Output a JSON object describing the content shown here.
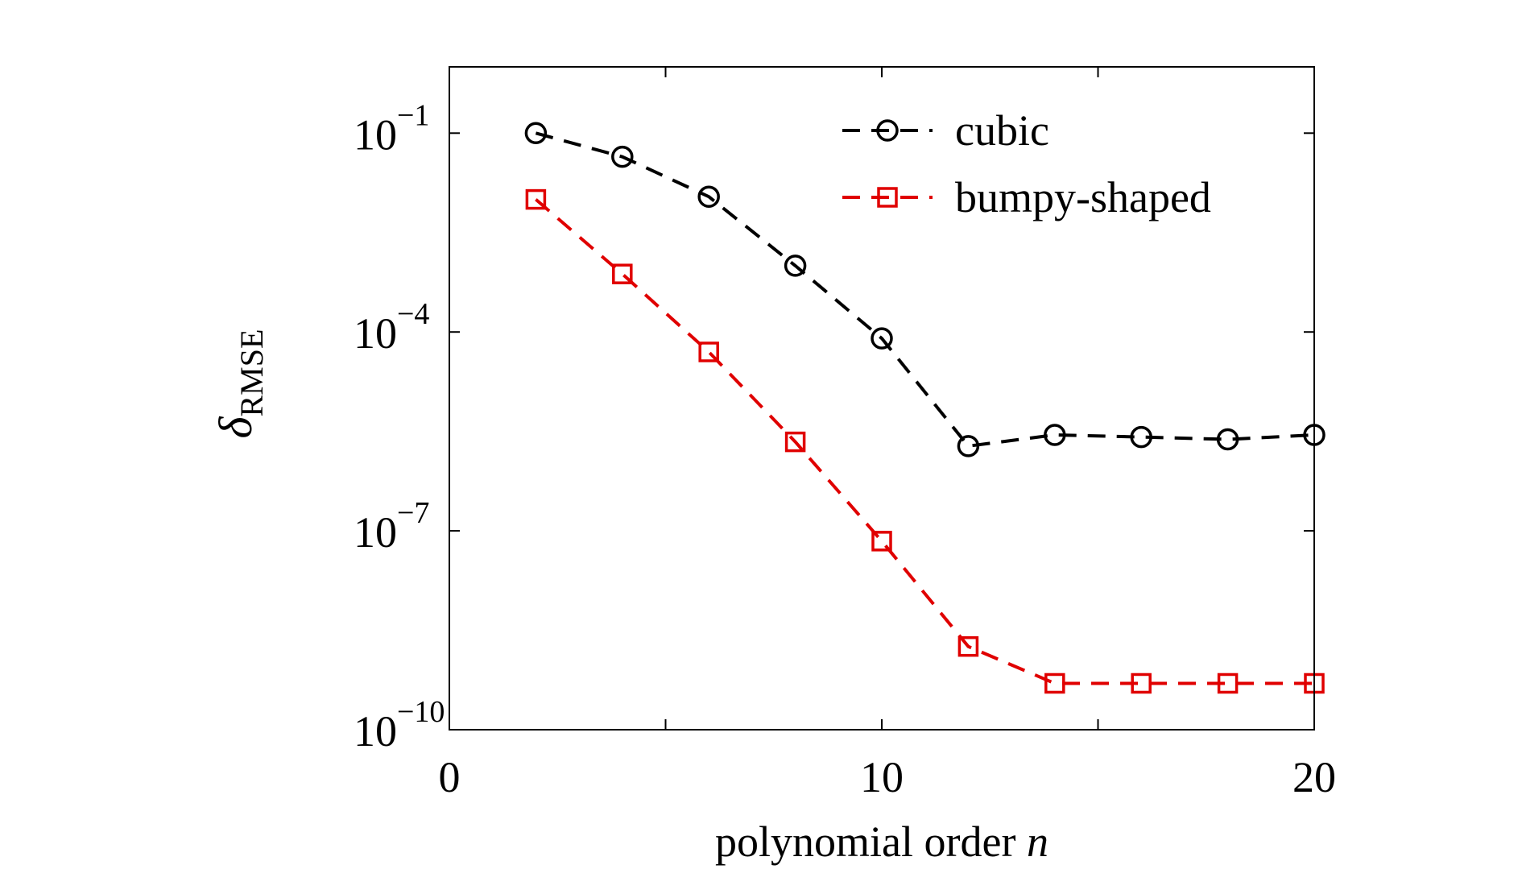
{
  "chart_data": {
    "type": "line",
    "xlabel": "polynomial order",
    "xlabel_var": "n",
    "ylabel_symbol": "δ",
    "ylabel_subscript": "RMSE",
    "xlim": [
      0,
      20
    ],
    "ylim": [
      1e-10,
      1
    ],
    "yscale": "log",
    "grid": false,
    "legend_position": "top-right",
    "x_ticks": [
      {
        "value": 0,
        "label": "0"
      },
      {
        "value": 5,
        "label": ""
      },
      {
        "value": 10,
        "label": "10"
      },
      {
        "value": 15,
        "label": ""
      },
      {
        "value": 20,
        "label": "20"
      }
    ],
    "y_ticks": [
      {
        "value": 1e-10,
        "base": "10",
        "exp": "−10"
      },
      {
        "value": 1e-07,
        "base": "10",
        "exp": "−7"
      },
      {
        "value": 0.0001,
        "base": "10",
        "exp": "−4"
      },
      {
        "value": 0.1,
        "base": "10",
        "exp": "−1"
      }
    ],
    "series": [
      {
        "name": "cubic",
        "color": "#000000",
        "marker": "circle",
        "x": [
          2,
          4,
          6,
          8,
          10,
          12,
          14,
          16,
          18,
          20
        ],
        "y": [
          0.1,
          0.044,
          0.011,
          0.001,
          8e-05,
          1.9e-06,
          2.8e-06,
          2.6e-06,
          2.4e-06,
          2.8e-06
        ]
      },
      {
        "name": "bumpy-shaped",
        "color": "#e00000",
        "marker": "square",
        "x": [
          2,
          4,
          6,
          8,
          10,
          12,
          14,
          16,
          18,
          20
        ],
        "y": [
          0.01,
          0.00075,
          5e-05,
          2.2e-06,
          7e-08,
          1.8e-09,
          5e-10,
          5e-10,
          5e-10,
          5e-10
        ]
      }
    ]
  }
}
